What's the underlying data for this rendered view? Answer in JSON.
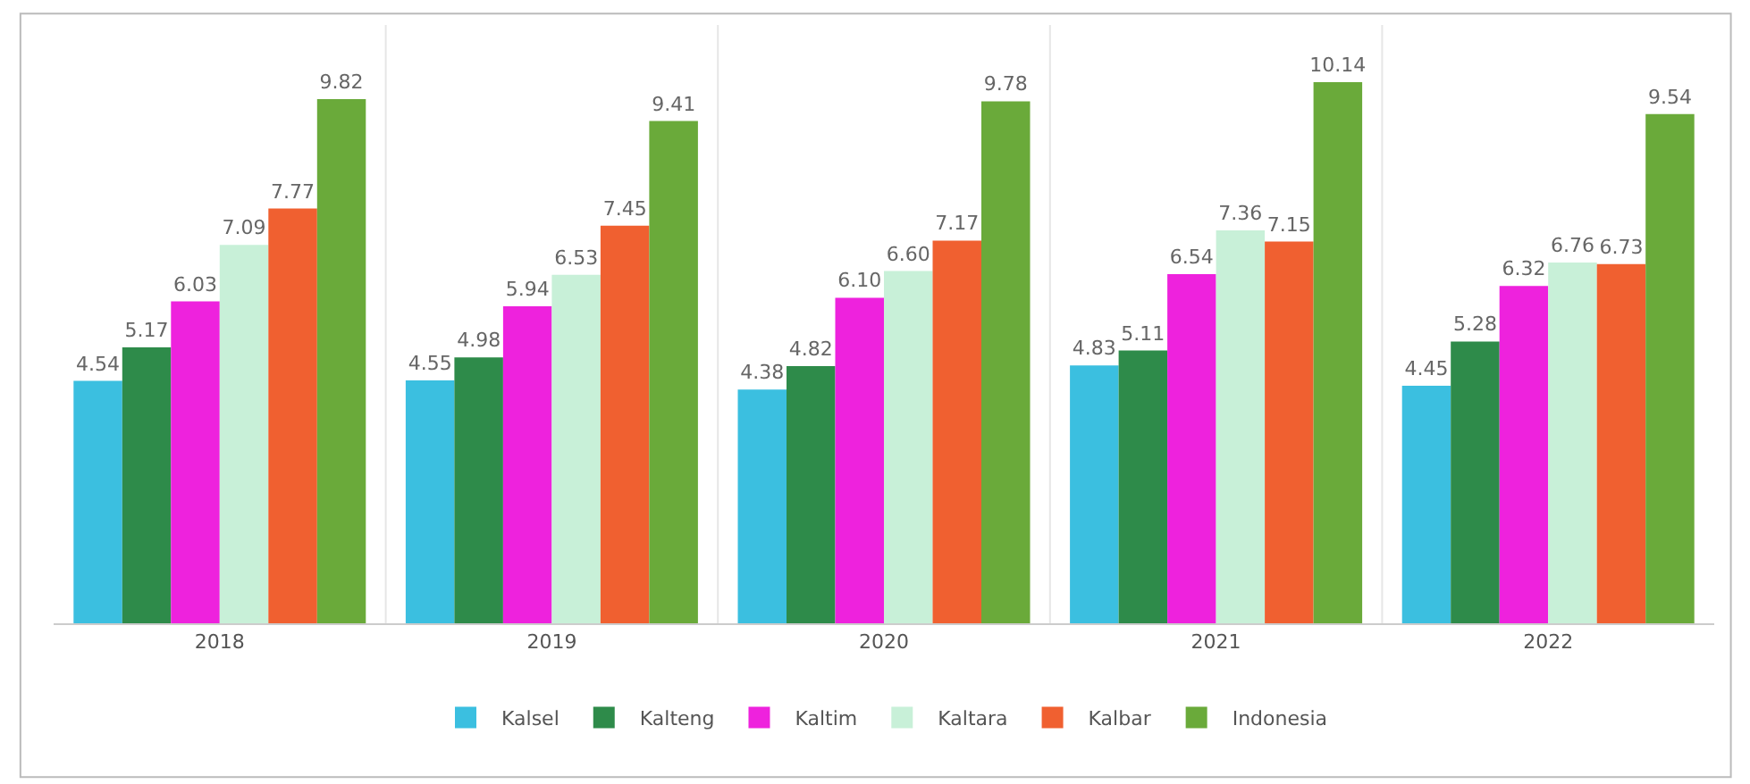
{
  "chart_data": {
    "type": "bar",
    "categories": [
      "2018",
      "2019",
      "2020",
      "2021",
      "2022"
    ],
    "series": [
      {
        "name": "Kalsel",
        "color": "#3bbfe0",
        "values": [
          4.54,
          4.55,
          4.38,
          4.83,
          4.45
        ],
        "value_labels": [
          "4.54",
          "4.55",
          "4.38",
          "4.83",
          "4.45"
        ]
      },
      {
        "name": "Kalteng",
        "color": "#2e8b4a",
        "values": [
          5.17,
          4.98,
          4.82,
          5.11,
          5.28
        ],
        "value_labels": [
          "5.17",
          "4.98",
          "4.82",
          "5.11",
          "5.28"
        ]
      },
      {
        "name": "Kaltim",
        "color": "#ee22dd",
        "values": [
          6.03,
          5.94,
          6.1,
          6.54,
          6.32
        ],
        "value_labels": [
          "6.03",
          "5.94",
          "6.10",
          "6.54",
          "6.32"
        ]
      },
      {
        "name": "Kaltara",
        "color": "#c8f0d8",
        "values": [
          7.09,
          6.53,
          6.6,
          7.36,
          6.76
        ],
        "value_labels": [
          "7.09",
          "6.53",
          "6.60",
          "7.36",
          "6.76"
        ]
      },
      {
        "name": "Kalbar",
        "color": "#f06030",
        "values": [
          7.77,
          7.45,
          7.17,
          7.15,
          6.73
        ],
        "value_labels": [
          "7.77",
          "7.45",
          "7.17",
          "7.15",
          "6.73"
        ]
      },
      {
        "name": "Indonesia",
        "color": "#6aaa3a",
        "values": [
          9.82,
          9.41,
          9.78,
          10.14,
          9.54
        ],
        "value_labels": [
          "9.82",
          "9.41",
          "9.78",
          "10.14",
          "9.54"
        ]
      }
    ],
    "legend": "bottom",
    "grid": false
  }
}
